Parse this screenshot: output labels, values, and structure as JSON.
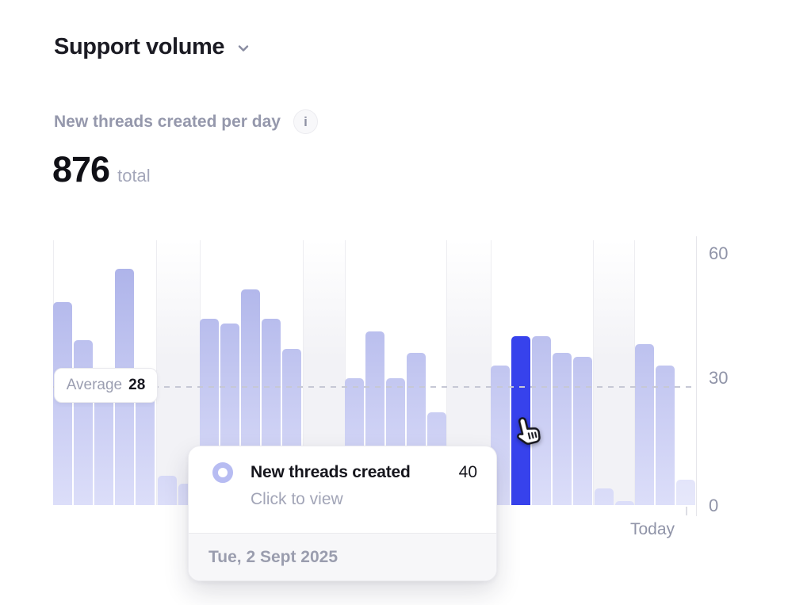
{
  "header": {
    "title": "Support volume"
  },
  "metric": {
    "label": "New threads created per day",
    "info_icon": "i",
    "value": "876",
    "unit": "total"
  },
  "chart_data": {
    "type": "bar",
    "title": "New threads created per day",
    "series_name": "New threads created",
    "values": [
      48,
      39,
      30,
      56,
      31,
      7,
      5,
      44,
      43,
      51,
      44,
      37,
      6,
      3,
      30,
      41,
      30,
      36,
      22,
      5,
      2,
      33,
      40,
      40,
      36,
      35,
      4,
      1,
      38,
      33,
      6
    ],
    "kinds": [
      "weekday",
      "weekday",
      "weekday",
      "weekday",
      "weekday",
      "weekend",
      "weekend",
      "weekday",
      "weekday",
      "weekday",
      "weekday",
      "weekday",
      "weekend",
      "weekend",
      "weekday",
      "weekday",
      "weekday",
      "weekday",
      "weekday",
      "weekend",
      "weekend",
      "weekday",
      "weekday",
      "weekday",
      "weekday",
      "weekday",
      "weekend",
      "weekend",
      "weekday",
      "weekday",
      "weekday"
    ],
    "highlight_index": 22,
    "today_index": 30,
    "total": 876,
    "average": 28,
    "average_label": "Average",
    "average_value": "28",
    "y_ticks": [
      60,
      30,
      0
    ],
    "y_tick_labels": [
      "60",
      "30",
      "0"
    ],
    "ylim": [
      0,
      64
    ],
    "x_end_label": "Today",
    "grid": "vertical weekly gridlines with shaded weekend bands, dashed horizontal average line",
    "legend_position": "none"
  },
  "tooltip": {
    "title": "New threads created",
    "value": "40",
    "hint": "Click to view",
    "date": "Tue, 2 Sept 2025"
  },
  "colors": {
    "highlight_bar": "#3742ec",
    "bar_gradient_top": "#a9afe8",
    "bar_gradient_bottom": "#dcdef9",
    "average_dash": "#c6c8d5",
    "muted_text": "#9598ac",
    "dark_text": "#15151c"
  }
}
